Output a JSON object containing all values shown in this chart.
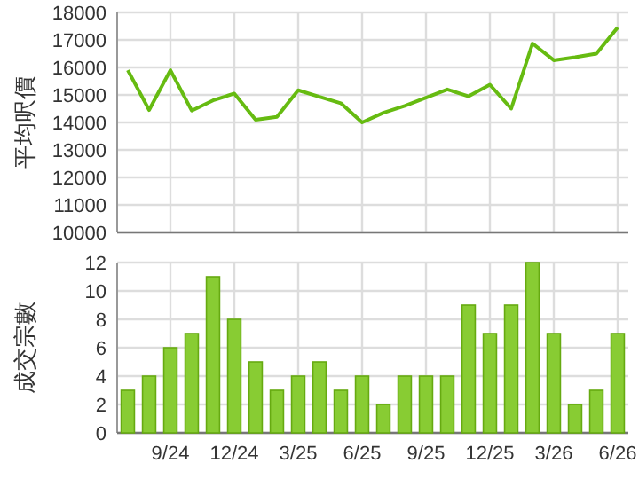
{
  "chart_data": [
    {
      "type": "line",
      "ylabel": "平均呎價",
      "categories": [
        null,
        null,
        null,
        null,
        null,
        null,
        null,
        null,
        null,
        null,
        null,
        null,
        null,
        null,
        null,
        null,
        null,
        null,
        null,
        null,
        null,
        null,
        null,
        null
      ],
      "values": [
        15900,
        14450,
        15900,
        14430,
        14800,
        15050,
        14100,
        14200,
        15170,
        14930,
        14700,
        14000,
        14350,
        14600,
        14900,
        15200,
        14950,
        15370,
        14500,
        16870,
        16260,
        16370,
        16500,
        17450
      ],
      "color": "#66bb11",
      "ylim": [
        10000,
        18000
      ],
      "yticks": [
        10000,
        11000,
        12000,
        13000,
        14000,
        15000,
        16000,
        17000,
        18000
      ],
      "grid": true,
      "tick_labels": "y"
    },
    {
      "type": "bar",
      "ylabel": "成交宗數",
      "categories": [
        null,
        null,
        "9/24",
        null,
        null,
        "12/24",
        null,
        null,
        "3/25",
        null,
        null,
        "6/25",
        null,
        null,
        "9/25",
        null,
        null,
        "12/25",
        null,
        null,
        "3/26",
        null,
        null,
        "6/26"
      ],
      "values": [
        3,
        4,
        6,
        7,
        11,
        8,
        5,
        3,
        4,
        5,
        3,
        4,
        2,
        4,
        4,
        4,
        9,
        7,
        9,
        12,
        7,
        2,
        3,
        7
      ],
      "color": "#88cc33",
      "ylim": [
        0,
        12
      ],
      "yticks": [
        0,
        2,
        4,
        6,
        8,
        10,
        12
      ],
      "grid": true
    }
  ]
}
